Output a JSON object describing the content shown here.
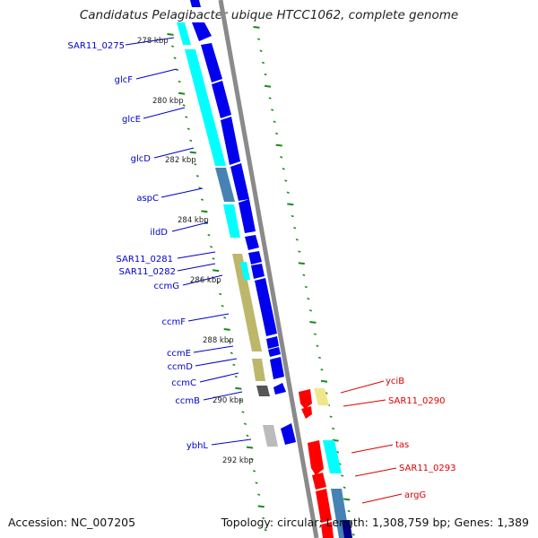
{
  "title": "Candidatus Pelagibacter ubique HTCC1062, complete genome",
  "footer": {
    "accession": "Accession: NC_007205",
    "summary": "Topology: circular; Length: 1,308,759 bp; Genes: 1,389"
  },
  "ticks": [
    "278 kbp",
    "280 kbp",
    "282 kbp",
    "284 kbp",
    "286 kbp",
    "288 kbp",
    "290 kbp",
    "292 kbp"
  ],
  "colors": {
    "forward_label": "#0000cc",
    "reverse_label": "#dd0000",
    "backbone": "#888888",
    "tick": "#1a8a1a"
  },
  "genes_left": [
    "SAR11_0275",
    "glcF",
    "glcE",
    "glcD",
    "aspC",
    "ildD",
    "SAR11_0281",
    "SAR11_0282",
    "ccmG",
    "ccmF",
    "ccmE",
    "ccmD",
    "ccmC",
    "ccmB",
    "ybhL"
  ],
  "genes_right": [
    "yciB",
    "SAR11_0290",
    "tas",
    "SAR11_0293",
    "argG"
  ]
}
